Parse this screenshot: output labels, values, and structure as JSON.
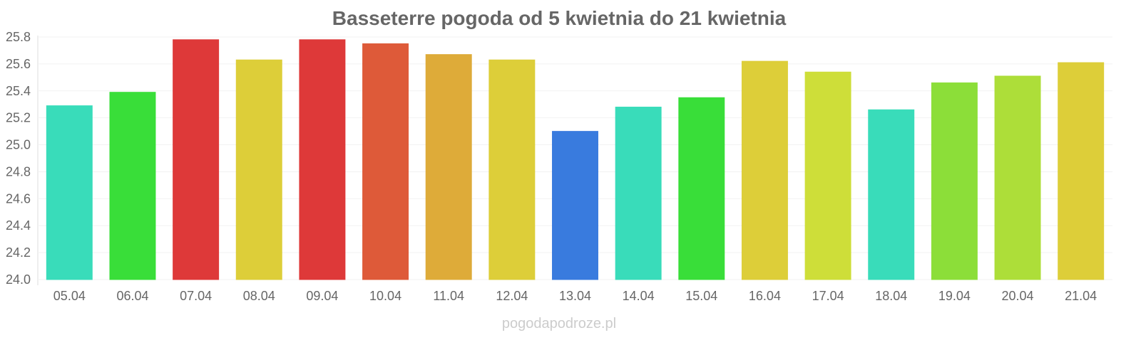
{
  "chart_data": {
    "type": "bar",
    "title": "Basseterre pogoda od 5 kwietnia do 21 kwietnia",
    "xlabel": "",
    "ylabel": "",
    "ylim": [
      24.0,
      25.8
    ],
    "yticks": [
      "24.0",
      "24.2",
      "24.4",
      "24.6",
      "24.8",
      "25.0",
      "25.2",
      "25.4",
      "25.6",
      "25.8"
    ],
    "grid": true,
    "categories": [
      "05.04",
      "06.04",
      "07.04",
      "08.04",
      "09.04",
      "10.04",
      "11.04",
      "12.04",
      "13.04",
      "14.04",
      "15.04",
      "16.04",
      "17.04",
      "18.04",
      "19.04",
      "20.04",
      "21.04"
    ],
    "values": [
      25.29,
      25.39,
      25.78,
      25.63,
      25.78,
      25.75,
      25.67,
      25.63,
      25.1,
      25.28,
      25.35,
      25.62,
      25.54,
      25.26,
      25.46,
      25.51,
      25.61
    ],
    "colors": [
      "#33dbb8",
      "#33dd33",
      "#dd3333",
      "#dccc33",
      "#dd3333",
      "#dd5533",
      "#dda833",
      "#dccc33",
      "#3377dd",
      "#33dbb8",
      "#33dd33",
      "#dccc33",
      "#ccdd33",
      "#33dbb8",
      "#88dd33",
      "#aadd33",
      "#dccc33"
    ]
  },
  "watermark": "pogodapodroze.pl"
}
